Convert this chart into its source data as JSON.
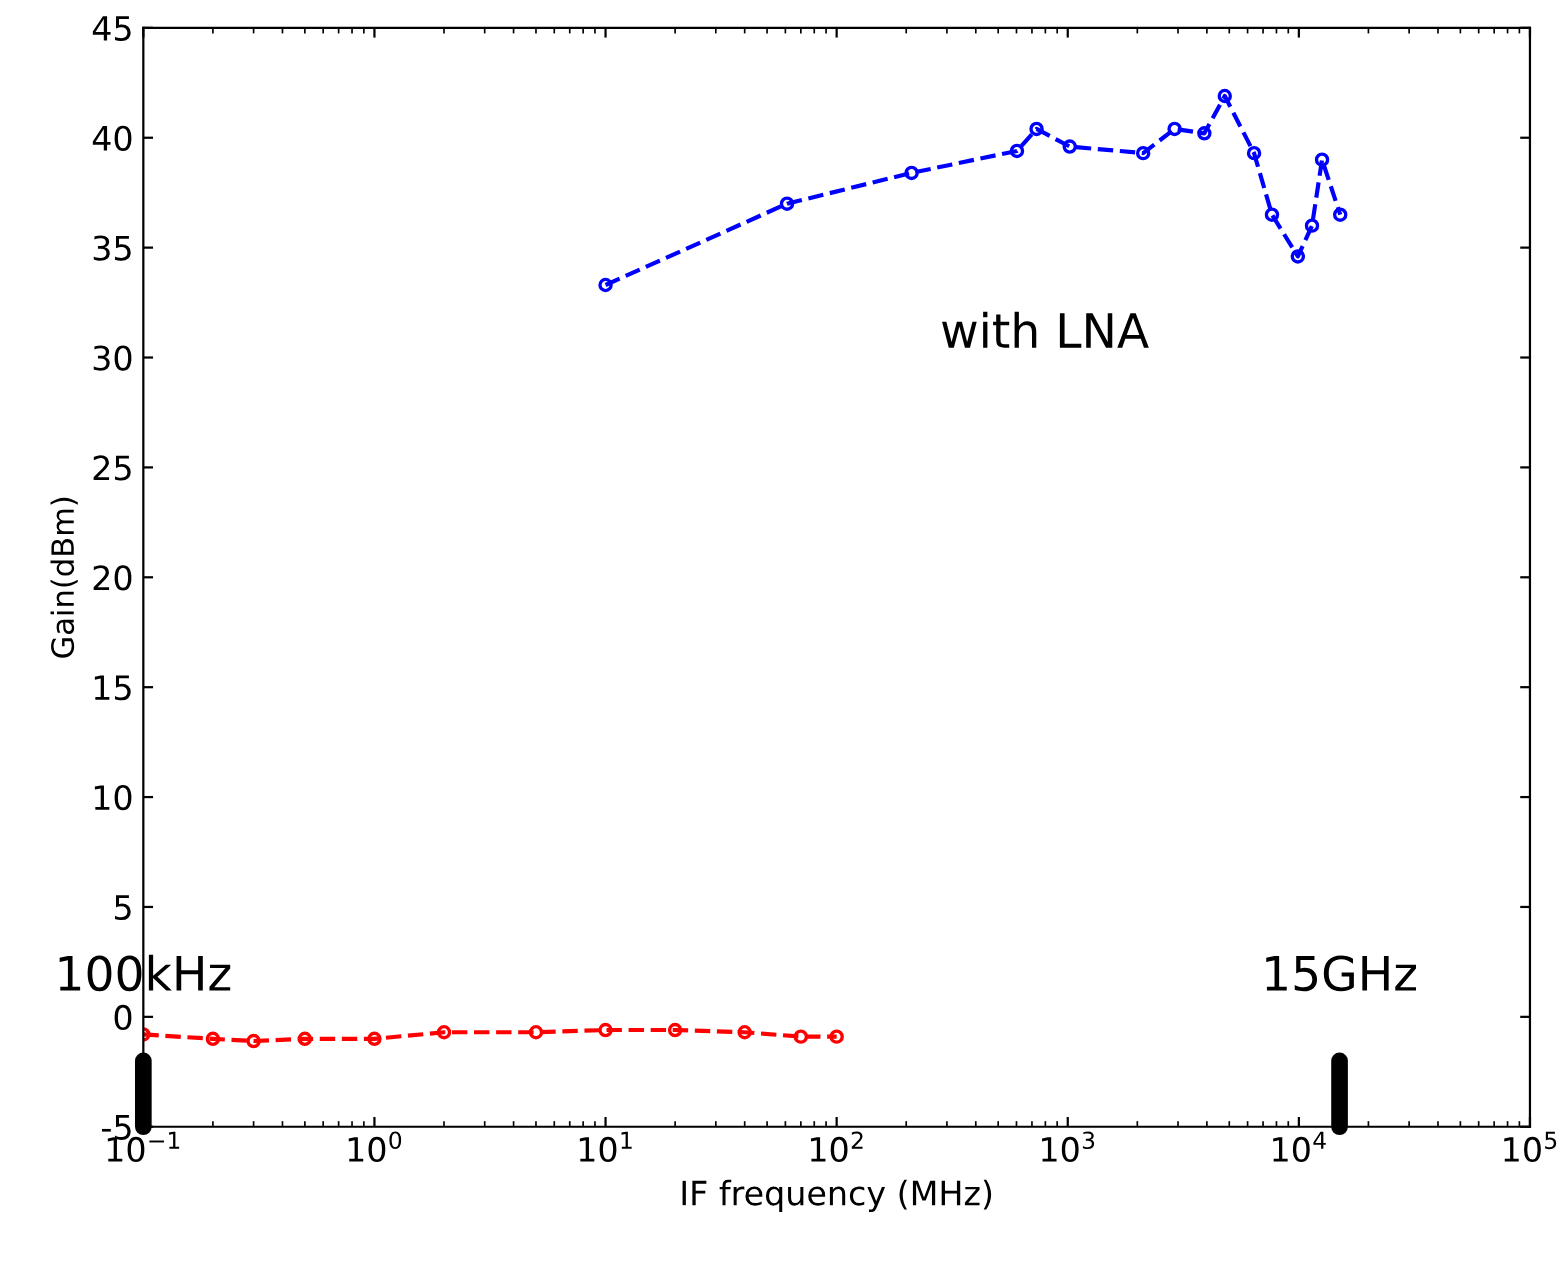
{
  "chart_data": {
    "type": "line",
    "xlabel": "IF frequency (MHz)",
    "ylabel": "Gain(dBm)",
    "log": "x",
    "xlim": [
      0.1,
      100000
    ],
    "ylim": [
      -5,
      45
    ],
    "xticks": [
      {
        "value": 0.1,
        "label": "10$^{−1}$"
      },
      {
        "value": 1,
        "label": "10$^{0}$"
      },
      {
        "value": 10,
        "label": "10$^{1}$"
      },
      {
        "value": 100,
        "label": "10$^{2}$"
      },
      {
        "value": 1000,
        "label": "10$^{3}$"
      },
      {
        "value": 10000,
        "label": "10$^{4}$"
      },
      {
        "value": 100000,
        "label": "10$^{5}$"
      }
    ],
    "yticks": [
      -5,
      0,
      5,
      10,
      15,
      20,
      25,
      30,
      35,
      40,
      45
    ],
    "grid": false,
    "legend": false,
    "marker": "circle",
    "line_style": "dashed",
    "series": [
      {
        "color": "#0000ff",
        "x": [
          10,
          61,
          211,
          603,
          733,
          1020,
          2120,
          2900,
          3900,
          4780,
          6400,
          7650,
          9900,
          11400,
          12600,
          15100
        ],
        "values": [
          33.3,
          37.0,
          38.4,
          39.4,
          40.4,
          39.6,
          39.3,
          40.4,
          40.2,
          41.9,
          39.3,
          36.5,
          34.6,
          36.0,
          39.0,
          36.5
        ]
      },
      {
        "color": "#ff0000",
        "x": [
          0.1,
          0.2,
          0.3,
          0.5,
          1,
          2,
          5,
          10,
          20,
          40,
          70,
          100
        ],
        "values": [
          -0.8,
          -1.0,
          -1.1,
          -1.0,
          -1.0,
          -0.7,
          -0.7,
          -0.6,
          -0.6,
          -0.7,
          -0.9,
          -0.9
        ]
      }
    ],
    "ref_lines": [
      {
        "axis": "x",
        "value": 0.1,
        "label": "100kHz",
        "color": "#000000"
      },
      {
        "axis": "x",
        "value": 15000,
        "label": "15GHz",
        "color": "#000000"
      }
    ],
    "annotations": [
      "with LNA"
    ]
  }
}
